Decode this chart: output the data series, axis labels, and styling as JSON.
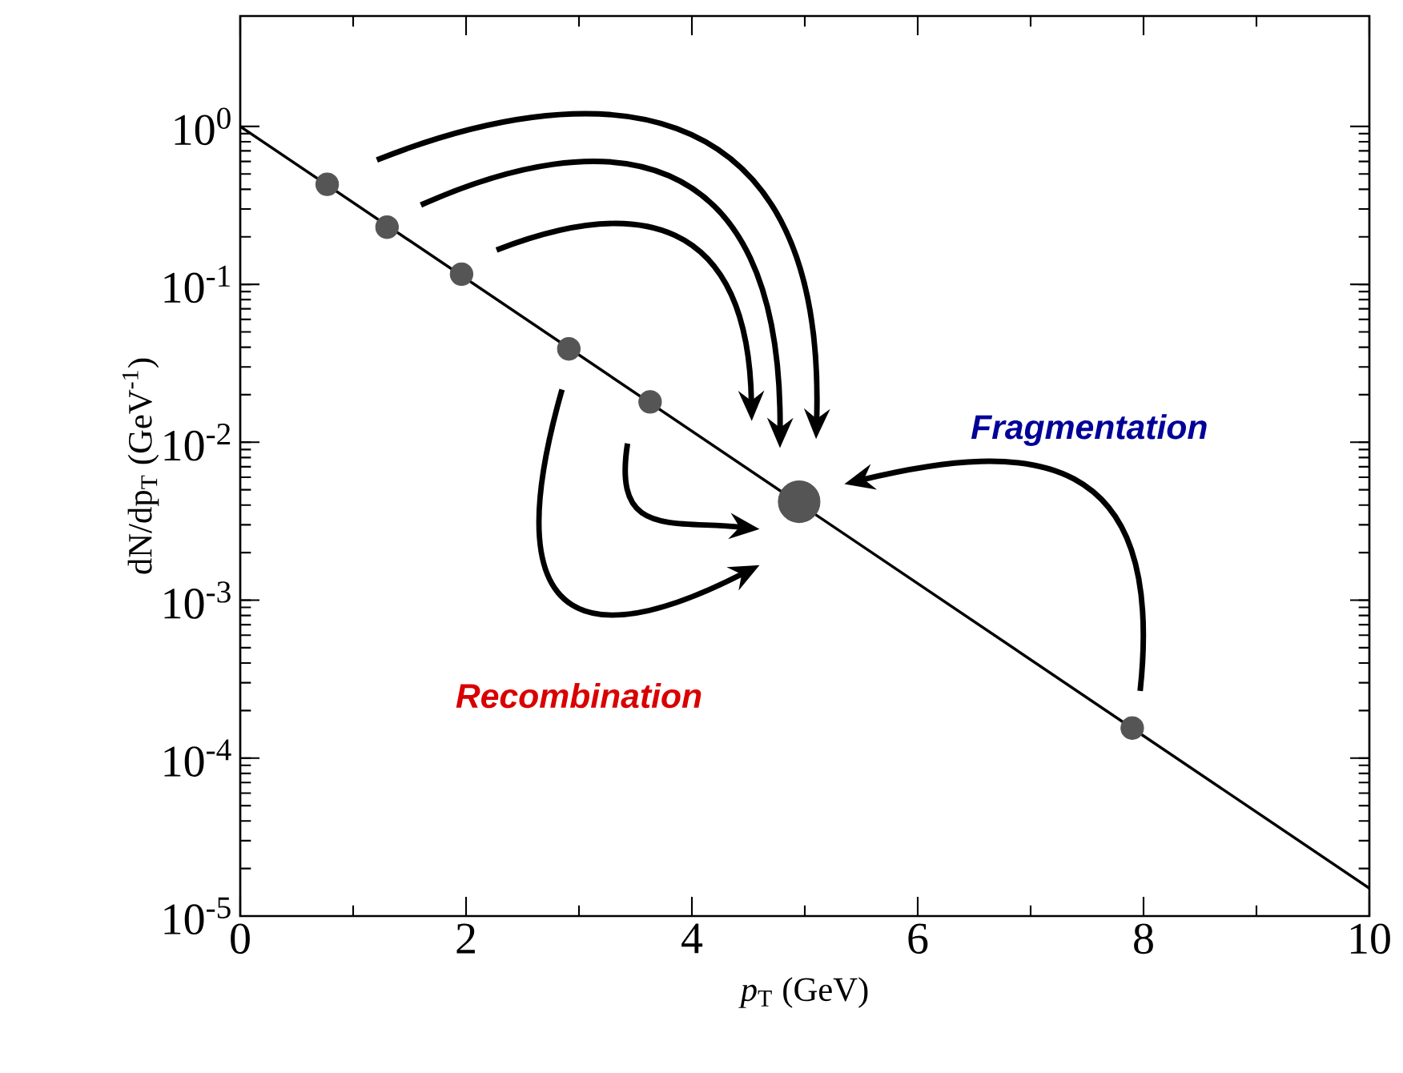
{
  "chart_data": {
    "type": "line",
    "xlabel": "*p*$_{T}$ (GeV)",
    "ylabel": "dN/dp$_{T}$ (GeV$^{-1}$)",
    "log": "y",
    "xlim": [
      0,
      10
    ],
    "ylim": [
      1e-05,
      5
    ],
    "xticks": [
      0,
      2,
      4,
      6,
      8,
      10
    ],
    "yticks": [
      {
        "value": 1e-05,
        "label": "10$^{-5}$"
      },
      {
        "value": 0.0001,
        "label": "10$^{-4}$"
      },
      {
        "value": 0.001,
        "label": "10$^{-3}$"
      },
      {
        "value": 0.01,
        "label": "10$^{-2}$"
      },
      {
        "value": 0.1,
        "label": "10$^{-1}$"
      },
      {
        "value": 1,
        "label": "10$^{0}$"
      }
    ],
    "series": [
      {
        "type": "line",
        "color": "#000000",
        "x": [
          0,
          10
        ],
        "values": [
          1,
          1.5e-05
        ]
      },
      {
        "type": "scatter",
        "marker": "circle",
        "color": "#555555",
        "x": [
          0.77,
          1.3,
          1.96,
          2.91,
          3.63,
          7.9
        ],
        "values": [
          0.43,
          0.23,
          0.116,
          0.039,
          0.018,
          0.000155
        ]
      },
      {
        "type": "scatter",
        "marker": "circle",
        "color": "#555555",
        "x": [
          4.95
        ],
        "values": [
          0.0042
        ]
      }
    ],
    "annotations": [
      "Recombination",
      "Fragmentation"
    ]
  }
}
